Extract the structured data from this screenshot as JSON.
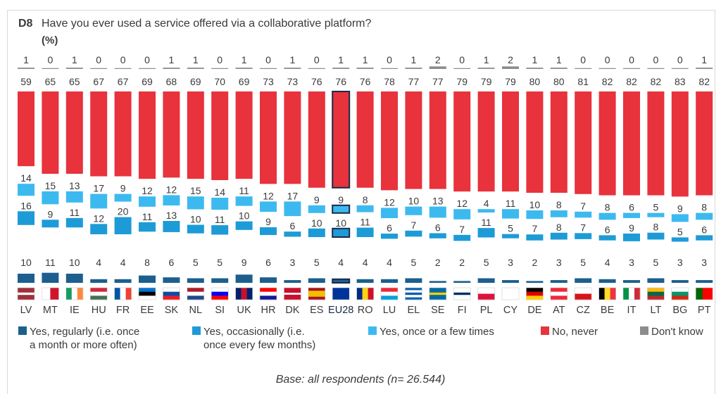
{
  "question": {
    "code": "D8",
    "text": "Have you ever used a service offered via a collaborative platform?",
    "unit": "(%)"
  },
  "colors": {
    "regularly": "#1c5f8f",
    "occasionally": "#1d9bd7",
    "once": "#3cbaf0",
    "never": "#e8323c",
    "dont_know": "#8c8c8c",
    "highlight_border": "#1a2a4a"
  },
  "chart_data": {
    "type": "bar",
    "stacked": true,
    "highlight": "EU28",
    "categories": [
      "LV",
      "MT",
      "IE",
      "HU",
      "FR",
      "EE",
      "SK",
      "NL",
      "SI",
      "UK",
      "HR",
      "DK",
      "ES",
      "EU28",
      "RO",
      "LU",
      "EL",
      "SE",
      "FI",
      "PL",
      "CY",
      "DE",
      "AT",
      "CZ",
      "BE",
      "IT",
      "LT",
      "BG",
      "PT"
    ],
    "series": [
      {
        "name": "Yes, regularly (i.e. once a month or more often)",
        "key": "regularly",
        "values": [
          10,
          11,
          10,
          4,
          4,
          8,
          6,
          5,
          5,
          9,
          6,
          3,
          5,
          4,
          4,
          4,
          5,
          2,
          2,
          5,
          3,
          2,
          3,
          5,
          4,
          3,
          5,
          3,
          3
        ]
      },
      {
        "name": "Yes, occasionally (i.e. once every few months)",
        "key": "occasionally",
        "values": [
          16,
          9,
          11,
          12,
          20,
          11,
          13,
          10,
          11,
          10,
          9,
          6,
          10,
          10,
          11,
          6,
          7,
          6,
          7,
          11,
          5,
          7,
          8,
          7,
          6,
          9,
          8,
          5,
          6
        ]
      },
      {
        "name": "Yes, once or a few times",
        "key": "once",
        "values": [
          14,
          15,
          13,
          17,
          9,
          12,
          12,
          15,
          14,
          11,
          12,
          17,
          9,
          9,
          8,
          12,
          10,
          13,
          12,
          4,
          11,
          10,
          8,
          7,
          8,
          6,
          5,
          9,
          8
        ]
      },
      {
        "name": "No, never",
        "key": "never",
        "values": [
          59,
          65,
          65,
          67,
          67,
          69,
          68,
          69,
          70,
          69,
          73,
          73,
          76,
          76,
          76,
          78,
          77,
          77,
          79,
          79,
          79,
          80,
          80,
          81,
          82,
          82,
          82,
          83,
          82
        ]
      },
      {
        "name": "Don't know",
        "key": "dont_know",
        "values": [
          1,
          0,
          1,
          0,
          0,
          0,
          1,
          1,
          0,
          1,
          0,
          1,
          0,
          1,
          1,
          0,
          1,
          2,
          0,
          1,
          2,
          1,
          1,
          0,
          0,
          0,
          0,
          0,
          1
        ]
      }
    ],
    "legend_placement": "bottom"
  },
  "legend": [
    {
      "key": "regularly",
      "line1": "Yes, regularly (i.e. once",
      "line2": "a month or more often)"
    },
    {
      "key": "occasionally",
      "line1": "Yes, occasionally (i.e.",
      "line2": "once every few months)"
    },
    {
      "key": "once",
      "line1": "Yes, once or a few times",
      "line2": ""
    },
    {
      "key": "never",
      "line1": "No, never",
      "line2": ""
    },
    {
      "key": "dont_know",
      "line1": "Don't know",
      "line2": ""
    }
  ],
  "base_note": "Base: all respondents (n= 26.544)"
}
